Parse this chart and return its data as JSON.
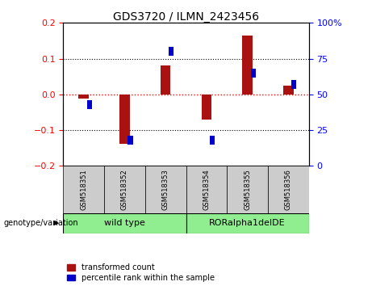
{
  "title": "GDS3720 / ILMN_2423456",
  "categories": [
    "GSM518351",
    "GSM518352",
    "GSM518353",
    "GSM518354",
    "GSM518355",
    "GSM518356"
  ],
  "red_values": [
    -0.012,
    -0.138,
    0.08,
    -0.07,
    0.165,
    0.025
  ],
  "blue_percentiles": [
    43,
    18,
    80,
    18,
    65,
    57
  ],
  "ylim_left": [
    -0.2,
    0.2
  ],
  "ylim_right": [
    0,
    100
  ],
  "yticks_left": [
    -0.2,
    -0.1,
    0.0,
    0.1,
    0.2
  ],
  "yticks_right": [
    0,
    25,
    50,
    75,
    100
  ],
  "red_color": "#aa1111",
  "blue_color": "#0000cc",
  "bar_width": 0.25,
  "blue_sq_size": 0.008,
  "group_labels": [
    "wild type",
    "RORalpha1delDE"
  ],
  "group_colors": [
    "#90ee90",
    "#90ee90"
  ],
  "genotype_label": "genotype/variation",
  "legend_red": "transformed count",
  "legend_blue": "percentile rank within the sample",
  "bg_color": "#ffffff",
  "plot_bg": "#ffffff",
  "tick_bg": "#cccccc"
}
